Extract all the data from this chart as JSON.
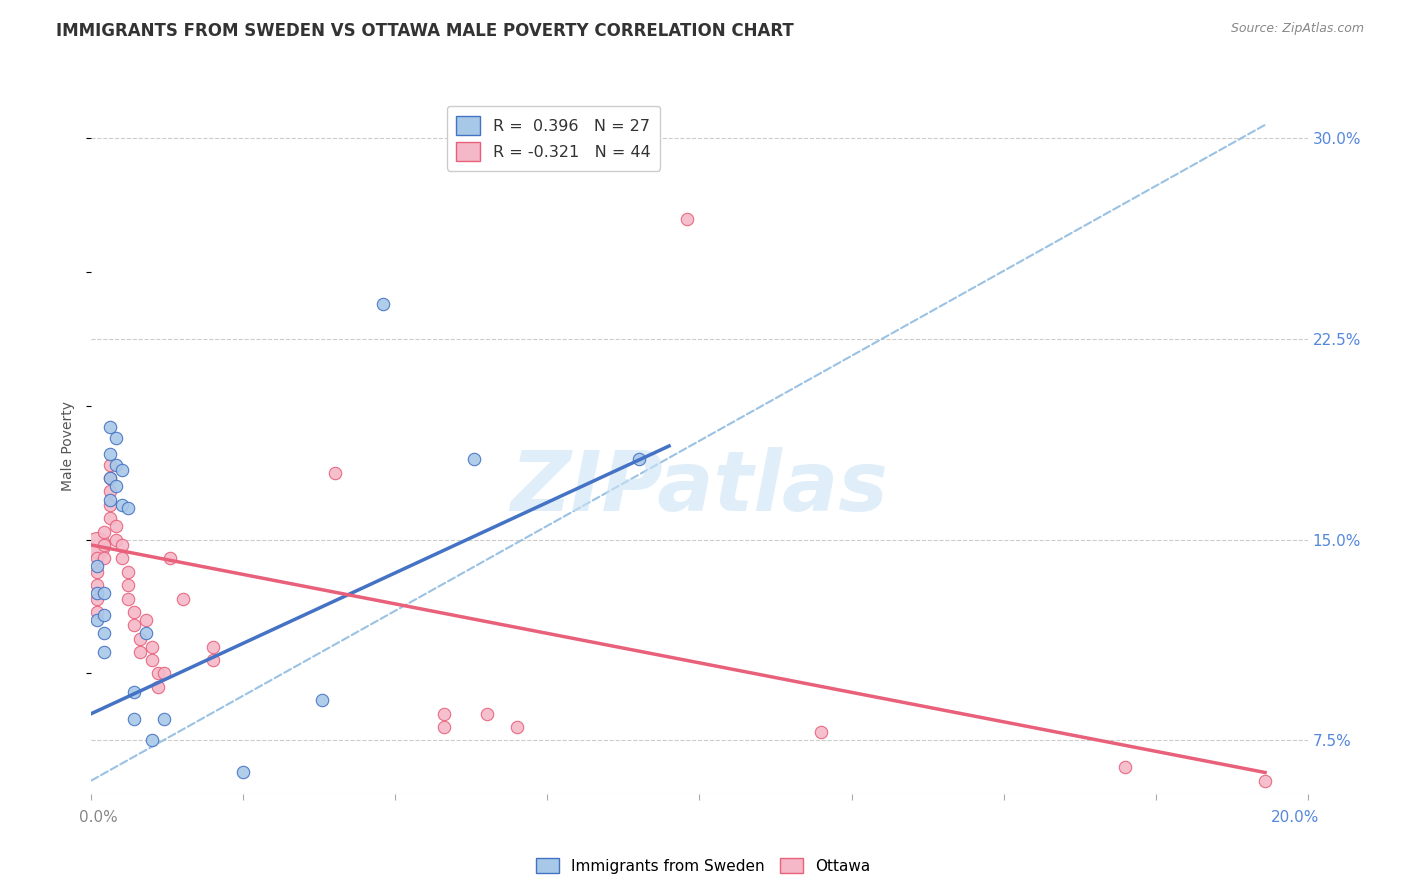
{
  "title": "IMMIGRANTS FROM SWEDEN VS OTTAWA MALE POVERTY CORRELATION CHART",
  "source": "Source: ZipAtlas.com",
  "ylabel": "Male Poverty",
  "yticks": [
    0.075,
    0.15,
    0.225,
    0.3
  ],
  "ytick_labels": [
    "7.5%",
    "15.0%",
    "22.5%",
    "30.0%"
  ],
  "xlim": [
    0.0,
    0.2
  ],
  "ylim": [
    0.055,
    0.315
  ],
  "watermark": "ZIPatlas",
  "blue_color": "#a8c8e8",
  "pink_color": "#f4b8c8",
  "blue_line_color": "#4472c4",
  "pink_line_color": "#e8607a",
  "dashed_line_color": "#90bce0",
  "sweden_points": [
    [
      0.001,
      0.14
    ],
    [
      0.001,
      0.13
    ],
    [
      0.001,
      0.12
    ],
    [
      0.002,
      0.13
    ],
    [
      0.002,
      0.122
    ],
    [
      0.002,
      0.115
    ],
    [
      0.002,
      0.108
    ],
    [
      0.003,
      0.192
    ],
    [
      0.003,
      0.182
    ],
    [
      0.003,
      0.173
    ],
    [
      0.003,
      0.165
    ],
    [
      0.004,
      0.188
    ],
    [
      0.004,
      0.178
    ],
    [
      0.004,
      0.17
    ],
    [
      0.005,
      0.176
    ],
    [
      0.005,
      0.163
    ],
    [
      0.006,
      0.162
    ],
    [
      0.007,
      0.093
    ],
    [
      0.007,
      0.083
    ],
    [
      0.009,
      0.115
    ],
    [
      0.01,
      0.075
    ],
    [
      0.012,
      0.083
    ],
    [
      0.025,
      0.063
    ],
    [
      0.048,
      0.238
    ],
    [
      0.063,
      0.18
    ],
    [
      0.09,
      0.18
    ],
    [
      0.038,
      0.09
    ]
  ],
  "sweden_sizes": [
    80,
    80,
    80,
    80,
    80,
    80,
    80,
    80,
    80,
    80,
    80,
    80,
    80,
    80,
    80,
    80,
    80,
    80,
    80,
    80,
    80,
    80,
    80,
    80,
    80,
    80,
    80
  ],
  "ottawa_points": [
    [
      0.001,
      0.148
    ],
    [
      0.001,
      0.143
    ],
    [
      0.001,
      0.138
    ],
    [
      0.001,
      0.133
    ],
    [
      0.001,
      0.128
    ],
    [
      0.001,
      0.123
    ],
    [
      0.002,
      0.153
    ],
    [
      0.002,
      0.148
    ],
    [
      0.002,
      0.143
    ],
    [
      0.003,
      0.178
    ],
    [
      0.003,
      0.173
    ],
    [
      0.003,
      0.168
    ],
    [
      0.003,
      0.163
    ],
    [
      0.003,
      0.158
    ],
    [
      0.004,
      0.155
    ],
    [
      0.004,
      0.15
    ],
    [
      0.005,
      0.148
    ],
    [
      0.005,
      0.143
    ],
    [
      0.006,
      0.138
    ],
    [
      0.006,
      0.133
    ],
    [
      0.006,
      0.128
    ],
    [
      0.007,
      0.123
    ],
    [
      0.007,
      0.118
    ],
    [
      0.008,
      0.113
    ],
    [
      0.008,
      0.108
    ],
    [
      0.009,
      0.12
    ],
    [
      0.01,
      0.11
    ],
    [
      0.01,
      0.105
    ],
    [
      0.011,
      0.1
    ],
    [
      0.011,
      0.095
    ],
    [
      0.012,
      0.1
    ],
    [
      0.013,
      0.143
    ],
    [
      0.015,
      0.128
    ],
    [
      0.02,
      0.11
    ],
    [
      0.02,
      0.105
    ],
    [
      0.04,
      0.175
    ],
    [
      0.058,
      0.085
    ],
    [
      0.058,
      0.08
    ],
    [
      0.065,
      0.085
    ],
    [
      0.07,
      0.08
    ],
    [
      0.098,
      0.27
    ],
    [
      0.12,
      0.078
    ],
    [
      0.17,
      0.065
    ],
    [
      0.193,
      0.06
    ]
  ],
  "ottawa_sizes_large": [
    [
      0,
      350
    ]
  ],
  "ottawa_sizes": [
    350,
    80,
    80,
    80,
    80,
    80,
    80,
    80,
    80,
    80,
    80,
    80,
    80,
    80,
    80,
    80,
    80,
    80,
    80,
    80,
    80,
    80,
    80,
    80,
    80,
    80,
    80,
    80,
    80,
    80,
    80,
    80,
    80,
    80,
    80,
    80,
    80,
    80,
    80,
    80,
    80,
    80,
    80,
    80
  ],
  "sweden_trendline": [
    [
      0.0,
      0.085
    ],
    [
      0.095,
      0.185
    ]
  ],
  "ottawa_trendline": [
    [
      0.0,
      0.148
    ],
    [
      0.193,
      0.063
    ]
  ],
  "dashed_line": [
    [
      0.0,
      0.06
    ],
    [
      0.193,
      0.305
    ]
  ]
}
